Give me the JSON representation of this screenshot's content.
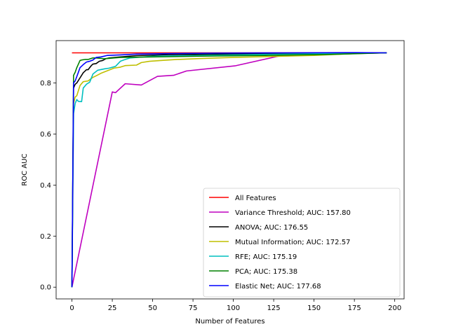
{
  "chart_data": {
    "type": "line",
    "title": "",
    "xlabel": "Number of Features",
    "ylabel": "ROC AUC",
    "xlim": [
      -9.8,
      205.8
    ],
    "ylim": [
      -0.046,
      0.966
    ],
    "xticks": [
      0,
      25,
      50,
      75,
      100,
      125,
      150,
      175,
      200
    ],
    "yticks": [
      0.0,
      0.2,
      0.4,
      0.6,
      0.8
    ],
    "ytick_labels": [
      "0.0",
      "0.2",
      "0.4",
      "0.6",
      "0.8"
    ],
    "grid": false,
    "legend_position": "lower right",
    "series": [
      {
        "name": "All Features",
        "color": "#ff0000",
        "x": [
          0,
          195
        ],
        "y": [
          0.918,
          0.918
        ]
      },
      {
        "name": "Variance Threshold; AUC: 157.80",
        "color": "#bf00bf",
        "x": [
          0,
          25,
          27,
          33,
          43,
          53,
          63,
          71,
          101,
          128,
          148,
          170,
          180,
          195
        ],
        "y": [
          0.0,
          0.765,
          0.762,
          0.797,
          0.792,
          0.826,
          0.83,
          0.847,
          0.867,
          0.905,
          0.909,
          0.914,
          0.916,
          0.918
        ]
      },
      {
        "name": "ANOVA; AUC: 176.55",
        "color": "#000000",
        "x": [
          0,
          1,
          2,
          3,
          5,
          7,
          9,
          10,
          12,
          13,
          15,
          17,
          19,
          21,
          23,
          30,
          40,
          60,
          90,
          130,
          195
        ],
        "y": [
          0.0,
          0.78,
          0.795,
          0.8,
          0.82,
          0.84,
          0.852,
          0.852,
          0.868,
          0.874,
          0.876,
          0.885,
          0.888,
          0.895,
          0.898,
          0.902,
          0.907,
          0.911,
          0.913,
          0.915,
          0.918
        ]
      },
      {
        "name": "Mutual Information; AUC: 172.57",
        "color": "#bfbf00",
        "x": [
          0,
          1,
          2,
          3,
          5,
          7,
          10,
          13,
          15,
          18,
          22,
          26,
          30,
          33,
          40,
          43,
          48,
          55,
          65,
          80,
          100,
          125,
          150,
          175,
          195
        ],
        "y": [
          0.0,
          0.72,
          0.745,
          0.75,
          0.79,
          0.805,
          0.808,
          0.822,
          0.828,
          0.838,
          0.848,
          0.858,
          0.862,
          0.868,
          0.87,
          0.88,
          0.885,
          0.888,
          0.892,
          0.896,
          0.9,
          0.904,
          0.908,
          0.915,
          0.918
        ]
      },
      {
        "name": "RFE; AUC: 175.19",
        "color": "#00bfbf",
        "x": [
          0,
          1,
          2,
          3,
          4,
          6,
          7,
          9,
          11,
          13,
          16,
          20,
          23,
          27,
          30,
          32,
          36,
          50,
          80,
          120,
          160,
          195
        ],
        "y": [
          0.0,
          0.68,
          0.72,
          0.735,
          0.728,
          0.727,
          0.78,
          0.795,
          0.803,
          0.835,
          0.85,
          0.855,
          0.858,
          0.865,
          0.885,
          0.89,
          0.898,
          0.905,
          0.908,
          0.912,
          0.915,
          0.918
        ]
      },
      {
        "name": "PCA; AUC: 175.38",
        "color": "#008000",
        "x": [
          0,
          1,
          2,
          3,
          5,
          6,
          8,
          10,
          13,
          15,
          20,
          30,
          50,
          80,
          120,
          160,
          195
        ],
        "y": [
          0.0,
          0.83,
          0.842,
          0.86,
          0.888,
          0.89,
          0.892,
          0.892,
          0.898,
          0.898,
          0.895,
          0.9,
          0.902,
          0.905,
          0.908,
          0.912,
          0.918
        ]
      },
      {
        "name": "Elastic Net; AUC: 177.68",
        "color": "#0000ff",
        "x": [
          0,
          1,
          2,
          3,
          4,
          5,
          7,
          9,
          11,
          13,
          15,
          18,
          22,
          30,
          40,
          60,
          90,
          130,
          170,
          195
        ],
        "y": [
          0.0,
          0.8,
          0.808,
          0.825,
          0.842,
          0.86,
          0.872,
          0.882,
          0.885,
          0.89,
          0.9,
          0.902,
          0.908,
          0.91,
          0.913,
          0.915,
          0.917,
          0.918,
          0.919,
          0.918
        ]
      }
    ]
  }
}
